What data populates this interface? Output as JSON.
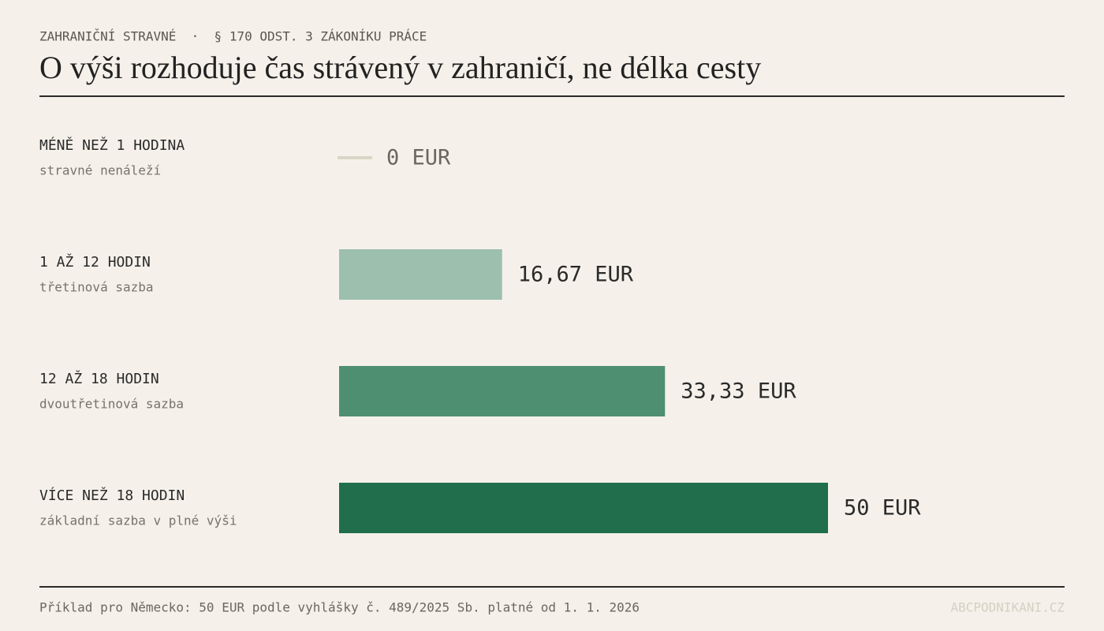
{
  "chart_data": {
    "type": "hbar",
    "kicker": "ZAHRANIČNÍ STRAVNÉ  ·  § 170 ODST. 3 ZÁKONÍKU PRÁCE",
    "title": "O výši rozhoduje čas strávený v zahraničí, ne délka cesty",
    "categories": [
      "MÉNĚ NEŽ 1 HODINA",
      "1 AŽ 12 HODIN",
      "12 AŽ 18 HODIN",
      "VÍCE NEŽ 18 HODIN"
    ],
    "sublabels": [
      "stravné nenáleží",
      "třetinová sazba",
      "dvoutřetinová sazba",
      "základní sazba v plné výši"
    ],
    "values": [
      0,
      16.67,
      33.33,
      50
    ],
    "value_labels": [
      "0 EUR",
      "16,67 EUR",
      "33,33 EUR",
      "50 EUR"
    ],
    "colors": [
      "#d8d6c6",
      "#9dbfad",
      "#4e8f71",
      "#216e4c"
    ],
    "xlim": [
      0,
      50
    ],
    "footnote": "Příklad pro Německo: 50 EUR podle vyhlášky č. 489/2025 Sb. platné od 1. 1. 2026",
    "source": "ABCPODNIKANI.CZ"
  }
}
